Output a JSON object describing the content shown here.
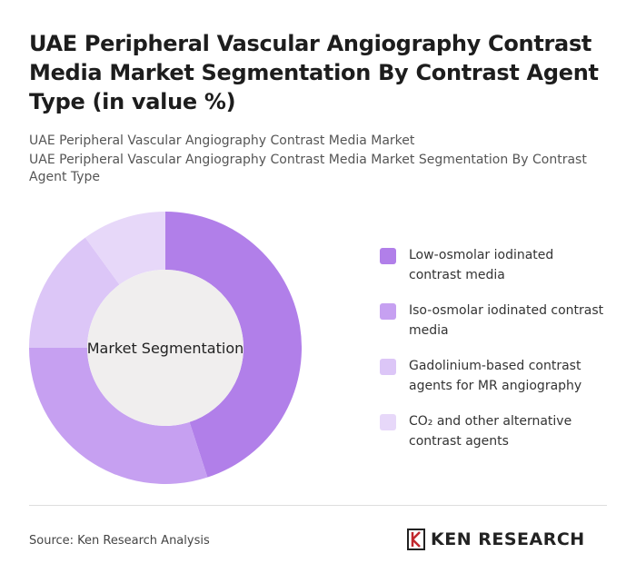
{
  "chart_data": {
    "type": "donut",
    "title": "UAE Peripheral Vascular Angiography Contrast Media Market Segmentation By Contrast Agent Type (in value %)",
    "subtitle": [
      "UAE Peripheral Vascular Angiography Contrast Media Market",
      "UAE Peripheral Vascular Angiography Contrast Media Market Segmentation By Contrast Agent Type"
    ],
    "center_label": "Market Segmentation",
    "categories": [
      "Low-osmolar iodinated contrast media",
      "Iso-osmolar iodinated contrast media",
      "Gadolinium-based contrast agents for MR angiography",
      "CO₂ and other alternative contrast agents"
    ],
    "values": [
      45,
      30,
      15,
      10
    ],
    "colors": [
      "#b17fe9",
      "#c6a0f1",
      "#dcc6f7",
      "#e7d8f9"
    ],
    "source": "Source: Ken Research Analysis",
    "logo": "KEN RESEARCH"
  }
}
